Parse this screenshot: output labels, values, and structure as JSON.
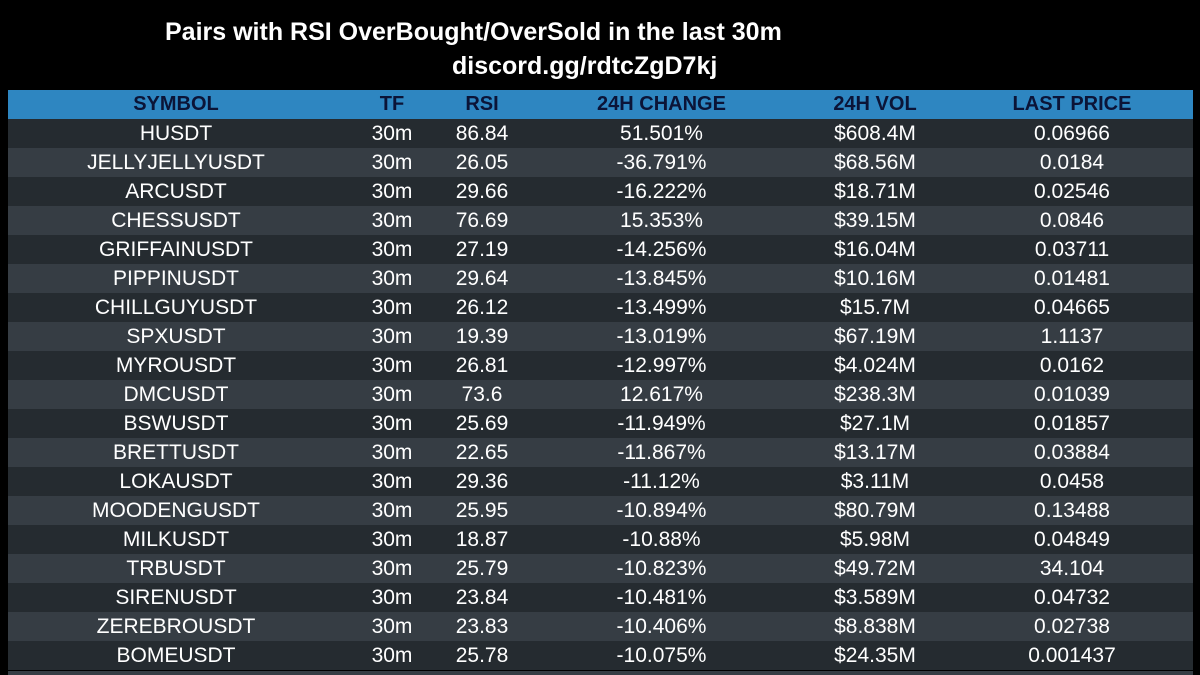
{
  "title": "Pairs with RSI OverBought/OverSold in the last 30m",
  "subtitle": "discord.gg/rdtcZgD7kj",
  "colors": {
    "header_bg": "#2e86c1",
    "header_text": "#0b1437",
    "row_dark": "#252b30",
    "row_light": "#363d44",
    "text": "#ffffff",
    "background": "#000000"
  },
  "table": {
    "columns": [
      "SYMBOL",
      "TF",
      "RSI",
      "24H CHANGE",
      "24H VOL",
      "LAST PRICE"
    ],
    "rows": [
      [
        "HUSDT",
        "30m",
        "86.84",
        "51.501%",
        "$608.4M",
        "0.06966"
      ],
      [
        "JELLYJELLYUSDT",
        "30m",
        "26.05",
        "-36.791%",
        "$68.56M",
        "0.0184"
      ],
      [
        "ARCUSDT",
        "30m",
        "29.66",
        "-16.222%",
        "$18.71M",
        "0.02546"
      ],
      [
        "CHESSUSDT",
        "30m",
        "76.69",
        "15.353%",
        "$39.15M",
        "0.0846"
      ],
      [
        "GRIFFAINUSDT",
        "30m",
        "27.19",
        "-14.256%",
        "$16.04M",
        "0.03711"
      ],
      [
        "PIPPINUSDT",
        "30m",
        "29.64",
        "-13.845%",
        "$10.16M",
        "0.01481"
      ],
      [
        "CHILLGUYUSDT",
        "30m",
        "26.12",
        "-13.499%",
        "$15.7M",
        "0.04665"
      ],
      [
        "SPXUSDT",
        "30m",
        "19.39",
        "-13.019%",
        "$67.19M",
        "1.1137"
      ],
      [
        "MYROUSDT",
        "30m",
        "26.81",
        "-12.997%",
        "$4.024M",
        "0.0162"
      ],
      [
        "DMCUSDT",
        "30m",
        "73.6",
        "12.617%",
        "$238.3M",
        "0.01039"
      ],
      [
        "BSWUSDT",
        "30m",
        "25.69",
        "-11.949%",
        "$27.1M",
        "0.01857"
      ],
      [
        "BRETTUSDT",
        "30m",
        "22.65",
        "-11.867%",
        "$13.17M",
        "0.03884"
      ],
      [
        "LOKAUSDT",
        "30m",
        "29.36",
        "-11.12%",
        "$3.11M",
        "0.0458"
      ],
      [
        "MOODENGUSDT",
        "30m",
        "25.95",
        "-10.894%",
        "$80.79M",
        "0.13488"
      ],
      [
        "MILKUSDT",
        "30m",
        "18.87",
        "-10.88%",
        "$5.98M",
        "0.04849"
      ],
      [
        "TRBUSDT",
        "30m",
        "25.79",
        "-10.823%",
        "$49.72M",
        "34.104"
      ],
      [
        "SIRENUSDT",
        "30m",
        "23.84",
        "-10.481%",
        "$3.589M",
        "0.04732"
      ],
      [
        "ZEREBROUSDT",
        "30m",
        "23.83",
        "-10.406%",
        "$8.838M",
        "0.02738"
      ],
      [
        "BOMEUSDT",
        "30m",
        "25.78",
        "-10.075%",
        "$24.35M",
        "0.001437"
      ]
    ]
  }
}
